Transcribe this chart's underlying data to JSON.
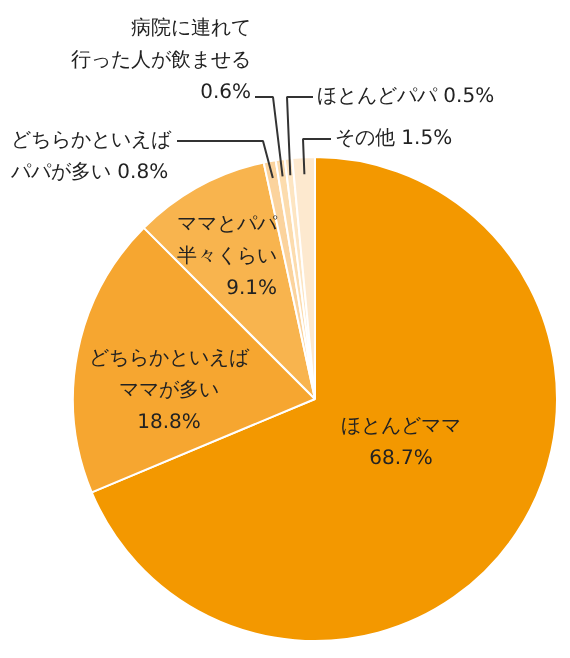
{
  "chart_data": {
    "type": "pie",
    "categories": [
      "ほとんどママ",
      "どちらかといえばママが多い",
      "ママとパパ半々くらい",
      "どちらかといえばパパが多い",
      "病院に連れて行った人が飲ませる",
      "ほとんどパパ",
      "その他"
    ],
    "values": [
      68.7,
      18.8,
      9.1,
      0.8,
      0.6,
      0.5,
      1.5
    ],
    "value_labels": [
      "68.7%",
      "18.8%",
      "9.1%",
      "0.8%",
      "0.6%",
      "0.5%",
      "1.5%"
    ],
    "colors": [
      "#f39800",
      "#f6a630",
      "#f8b44e",
      "#fbd39d",
      "#fcdcae",
      "#fde5c2",
      "#fde9cf"
    ]
  }
}
